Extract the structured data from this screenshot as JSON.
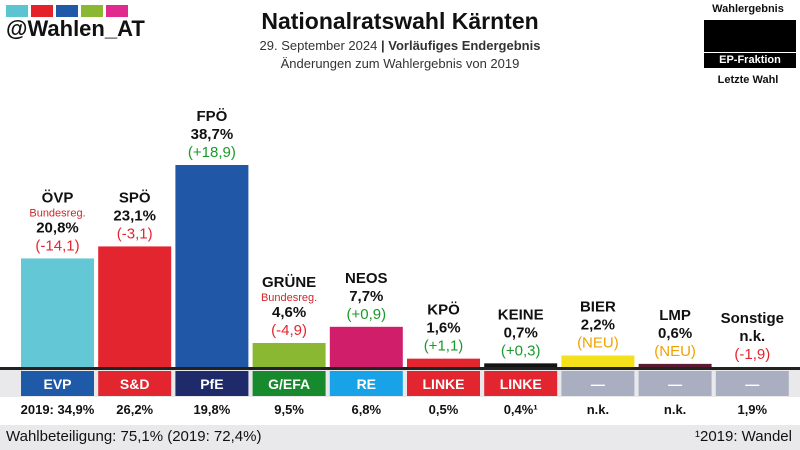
{
  "brand": {
    "handle": "@Wahlen_AT",
    "logo_colors": [
      "#5bc4d3",
      "#e4222a",
      "#1f5aa8",
      "#8ab833",
      "#e12a8d"
    ]
  },
  "header": {
    "title": "Nationalratswahl Kärnten",
    "date": "29. September 2024",
    "separator": "|",
    "status": "Vorläufiges Endergebnis",
    "changes_note": "Änderungen zum Wahlergebnis von 2019"
  },
  "legend": {
    "top": "Wahlergebnis",
    "box_label": "EP-Fraktion",
    "bottom": "Letzte Wahl"
  },
  "footer": {
    "turnout": "Wahlbeteiligung: 75,1% (2019: 72,4%)",
    "footnote": "¹2019: Wandel"
  },
  "chart_data": {
    "type": "bar",
    "ylim": [
      0,
      40
    ],
    "parties": [
      {
        "name": "ÖVP",
        "note": "Bundesreg.",
        "value": 20.8,
        "value_label": "20,8%",
        "change_label": "(-14,1)",
        "change_type": "neg",
        "color": "#63c7d6",
        "fraktion": "EVP",
        "fraktion_color": "#1e5aa8",
        "prev_label": "2019: 34,9%"
      },
      {
        "name": "SPÖ",
        "note": "",
        "value": 23.1,
        "value_label": "23,1%",
        "change_label": "(-3,1)",
        "change_type": "neg",
        "color": "#e3252f",
        "fraktion": "S&D",
        "fraktion_color": "#e3252f",
        "prev_label": "26,2%"
      },
      {
        "name": "FPÖ",
        "note": "",
        "value": 38.7,
        "value_label": "38,7%",
        "change_label": "(+18,9)",
        "change_type": "pos",
        "color": "#2057a6",
        "fraktion": "PfE",
        "fraktion_color": "#1f2a6b",
        "prev_label": "19,8%"
      },
      {
        "name": "GRÜNE",
        "note": "Bundesreg.",
        "value": 4.6,
        "value_label": "4,6%",
        "change_label": "(-4,9)",
        "change_type": "neg",
        "color": "#8ab833",
        "fraktion": "G/EFA",
        "fraktion_color": "#178a2e",
        "prev_label": "9,5%"
      },
      {
        "name": "NEOS",
        "note": "",
        "value": 7.7,
        "value_label": "7,7%",
        "change_label": "(+0,9)",
        "change_type": "pos",
        "color": "#d01e6b",
        "fraktion": "RE",
        "fraktion_color": "#18a3e8",
        "prev_label": "6,8%"
      },
      {
        "name": "KPÖ",
        "note": "",
        "value": 1.6,
        "value_label": "1,6%",
        "change_label": "(+1,1)",
        "change_type": "pos",
        "color": "#e3252f",
        "fraktion": "LINKE",
        "fraktion_color": "#e3252f",
        "prev_label": "0,5%"
      },
      {
        "name": "KEINE",
        "note": "",
        "value": 0.7,
        "value_label": "0,7%",
        "change_label": "(+0,3)",
        "change_type": "pos",
        "color": "#141414",
        "fraktion": "LINKE",
        "fraktion_color": "#e3252f",
        "prev_label": "0,4%¹"
      },
      {
        "name": "BIER",
        "note": "",
        "value": 2.2,
        "value_label": "2,2%",
        "change_label": "(NEU)",
        "change_type": "new",
        "color": "#f4e11b",
        "fraktion": "—",
        "fraktion_color": "#a9afc0",
        "prev_label": "n.k."
      },
      {
        "name": "LMP",
        "note": "",
        "value": 0.6,
        "value_label": "0,6%",
        "change_label": "(NEU)",
        "change_type": "new",
        "color": "#5c1a33",
        "fraktion": "—",
        "fraktion_color": "#a9afc0",
        "prev_label": "n.k."
      },
      {
        "name": "Sonstige",
        "note": "",
        "value": 0,
        "value_label": "n.k.",
        "change_label": "(-1,9)",
        "change_type": "neg",
        "color": "#a9afc0",
        "fraktion": "—",
        "fraktion_color": "#a9afc0",
        "prev_label": "1,9%"
      }
    ]
  }
}
